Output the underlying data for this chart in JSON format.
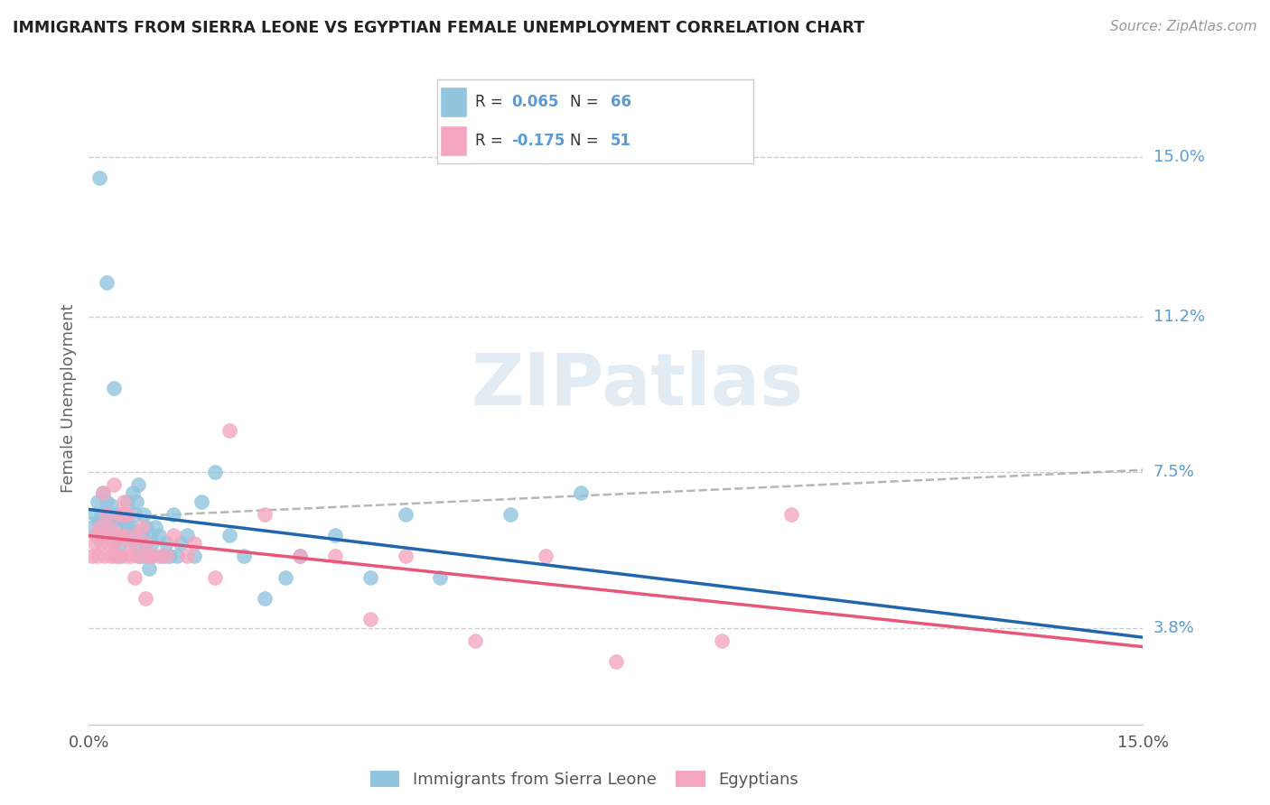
{
  "title": "IMMIGRANTS FROM SIERRA LEONE VS EGYPTIAN FEMALE UNEMPLOYMENT CORRELATION CHART",
  "source": "Source: ZipAtlas.com",
  "ylabel": "Female Unemployment",
  "y_ticks": [
    3.8,
    7.5,
    11.2,
    15.0
  ],
  "x_range": [
    0,
    15
  ],
  "y_range": [
    1.5,
    17.0
  ],
  "blue_R": 0.065,
  "blue_N": 66,
  "pink_R": -0.175,
  "pink_N": 51,
  "blue_color": "#92c5de",
  "pink_color": "#f4a6c0",
  "blue_trend_color": "#2166ac",
  "pink_trend_color": "#e8567a",
  "dashed_color": "#aaaaaa",
  "legend_label_blue": "Immigrants from Sierra Leone",
  "legend_label_pink": "Egyptians",
  "watermark": "ZIPatlas",
  "label_color": "#5b9bd5",
  "text_color": "#333333",
  "blue_scatter_x": [
    0.05,
    0.08,
    0.1,
    0.12,
    0.15,
    0.18,
    0.2,
    0.22,
    0.25,
    0.28,
    0.3,
    0.32,
    0.35,
    0.38,
    0.4,
    0.42,
    0.45,
    0.48,
    0.5,
    0.52,
    0.55,
    0.58,
    0.6,
    0.62,
    0.65,
    0.68,
    0.7,
    0.72,
    0.75,
    0.78,
    0.8,
    0.82,
    0.85,
    0.88,
    0.9,
    0.95,
    1.0,
    1.05,
    1.1,
    1.15,
    1.2,
    1.25,
    1.3,
    1.4,
    1.5,
    1.6,
    1.8,
    2.0,
    2.2,
    2.5,
    2.8,
    3.0,
    3.5,
    4.0,
    4.5,
    5.0,
    6.0,
    7.0,
    0.15,
    0.25,
    0.35,
    0.45,
    0.55,
    0.65,
    0.75,
    0.85
  ],
  "blue_scatter_y": [
    6.2,
    6.5,
    6.0,
    6.8,
    6.3,
    6.5,
    7.0,
    6.2,
    6.8,
    6.5,
    6.3,
    6.7,
    6.0,
    6.5,
    6.2,
    6.4,
    5.8,
    6.0,
    6.5,
    6.3,
    6.8,
    6.0,
    6.2,
    7.0,
    6.5,
    6.8,
    7.2,
    5.5,
    6.0,
    6.5,
    5.8,
    6.2,
    5.5,
    6.0,
    5.8,
    6.2,
    6.0,
    5.5,
    5.8,
    5.5,
    6.5,
    5.5,
    5.8,
    6.0,
    5.5,
    6.8,
    7.5,
    6.0,
    5.5,
    4.5,
    5.0,
    5.5,
    6.0,
    5.0,
    6.5,
    5.0,
    6.5,
    7.0,
    14.5,
    12.0,
    9.5,
    5.5,
    6.2,
    5.8,
    5.5,
    5.2
  ],
  "pink_scatter_x": [
    0.05,
    0.08,
    0.1,
    0.12,
    0.15,
    0.18,
    0.2,
    0.22,
    0.25,
    0.28,
    0.3,
    0.32,
    0.35,
    0.38,
    0.4,
    0.42,
    0.45,
    0.48,
    0.5,
    0.52,
    0.55,
    0.58,
    0.6,
    0.65,
    0.7,
    0.75,
    0.8,
    0.85,
    0.9,
    1.0,
    1.1,
    1.2,
    1.4,
    1.5,
    1.8,
    2.0,
    2.5,
    3.0,
    3.5,
    4.0,
    4.5,
    5.5,
    6.5,
    7.5,
    9.0,
    10.0,
    0.2,
    0.35,
    0.5,
    0.65,
    0.8
  ],
  "pink_scatter_y": [
    5.5,
    5.8,
    6.0,
    5.5,
    6.2,
    5.8,
    6.0,
    5.5,
    6.5,
    5.8,
    6.2,
    5.5,
    5.8,
    5.5,
    6.0,
    5.5,
    6.5,
    6.0,
    6.8,
    5.5,
    6.5,
    5.8,
    5.5,
    6.0,
    5.5,
    6.2,
    5.8,
    5.5,
    5.5,
    5.5,
    5.5,
    6.0,
    5.5,
    5.8,
    5.0,
    8.5,
    6.5,
    5.5,
    5.5,
    4.0,
    5.5,
    3.5,
    5.5,
    3.0,
    3.5,
    6.5,
    7.0,
    7.2,
    6.5,
    5.0,
    4.5
  ]
}
